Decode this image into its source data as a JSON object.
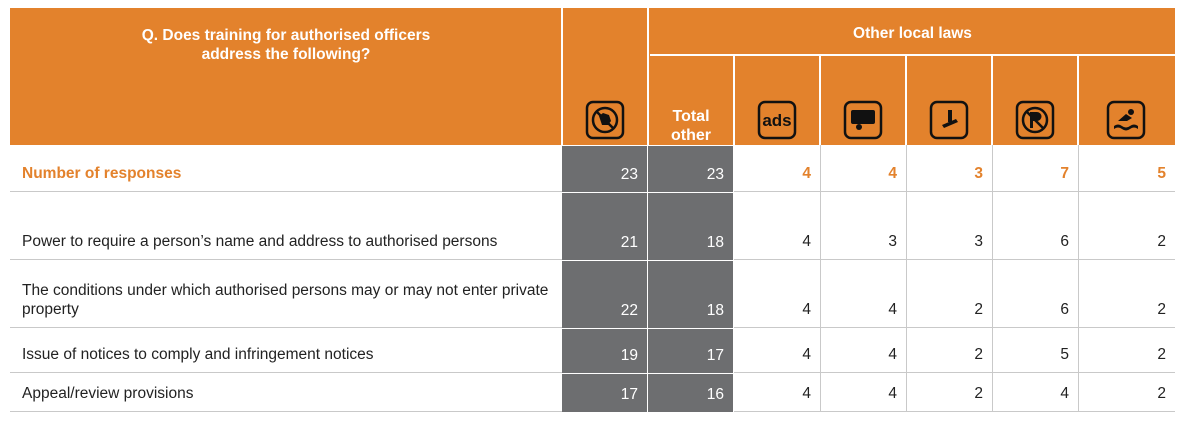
{
  "header": {
    "question": "Q. Does training for authorised officers address the following?",
    "group": "Other local laws",
    "total_other": "Total other",
    "ads_icon": "ads"
  },
  "rows": [
    {
      "label": "Number of responses",
      "values": [
        "23",
        "23",
        "4",
        "4",
        "3",
        "7",
        "5"
      ]
    },
    {
      "label": "Power to require a person’s name and address to authorised persons",
      "values": [
        "21",
        "18",
        "4",
        "3",
        "3",
        "6",
        "2"
      ]
    },
    {
      "label": "The conditions under which authorised persons may or may not enter private property",
      "values": [
        "22",
        "18",
        "4",
        "4",
        "2",
        "6",
        "2"
      ]
    },
    {
      "label": "Issue of notices to comply and infringement notices",
      "values": [
        "19",
        "17",
        "4",
        "4",
        "2",
        "5",
        "2"
      ]
    },
    {
      "label": "Appeal/review provisions",
      "values": [
        "17",
        "16",
        "4",
        "4",
        "2",
        "4",
        "2"
      ]
    }
  ]
}
